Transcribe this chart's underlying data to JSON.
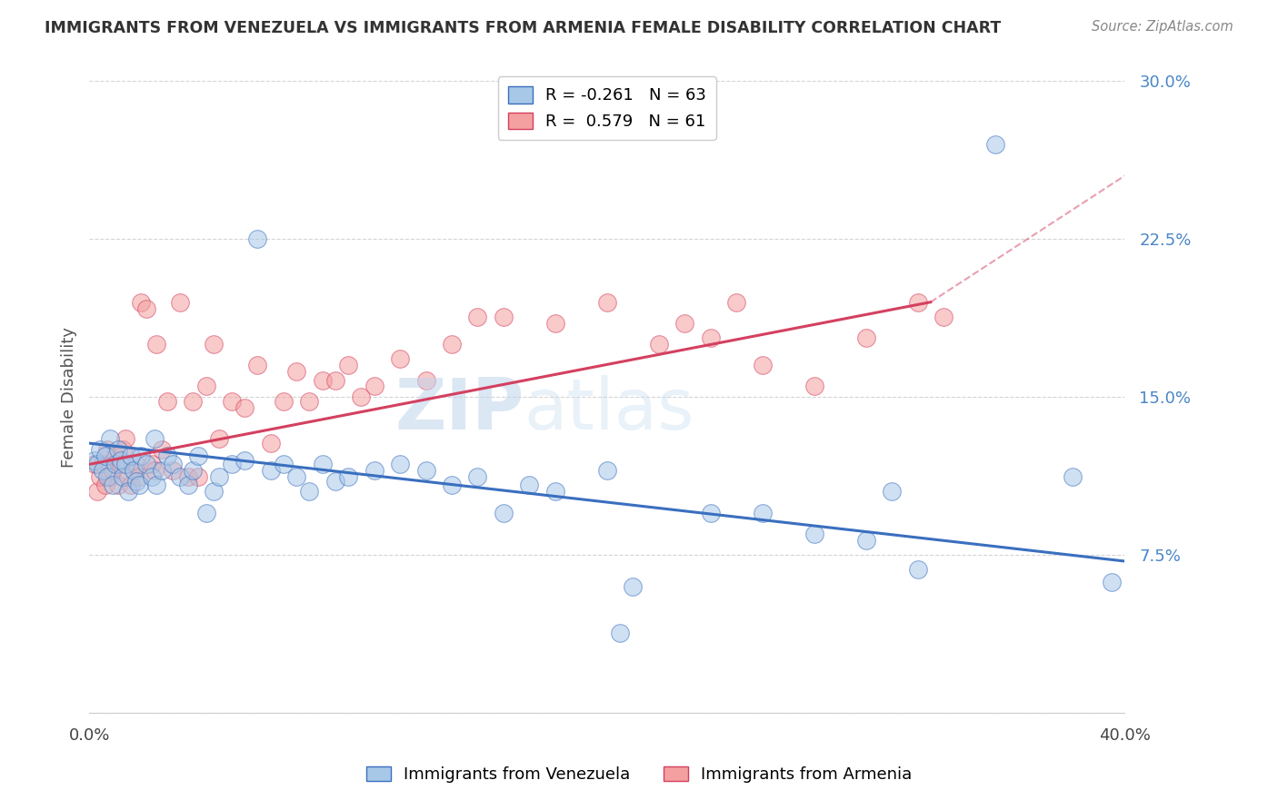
{
  "title": "IMMIGRANTS FROM VENEZUELA VS IMMIGRANTS FROM ARMENIA FEMALE DISABILITY CORRELATION CHART",
  "source": "Source: ZipAtlas.com",
  "ylabel": "Female Disability",
  "xlim": [
    0.0,
    0.4
  ],
  "ylim": [
    0.0,
    0.3
  ],
  "yticks": [
    0.0,
    0.075,
    0.15,
    0.225,
    0.3
  ],
  "ytick_labels": [
    "",
    "7.5%",
    "15.0%",
    "22.5%",
    "30.0%"
  ],
  "xticks": [
    0.0,
    0.1,
    0.2,
    0.3,
    0.4
  ],
  "xtick_labels": [
    "0.0%",
    "",
    "",
    "",
    "40.0%"
  ],
  "legend1_r": "-0.261",
  "legend1_n": "63",
  "legend2_r": "0.579",
  "legend2_n": "61",
  "color_venezuela": "#a8c8e8",
  "color_armenia": "#f4a0a0",
  "line_color_venezuela": "#3a6fbf",
  "line_color_armenia": "#d44060",
  "background_color": "#ffffff",
  "venezuela_x": [
    0.002,
    0.003,
    0.004,
    0.005,
    0.006,
    0.007,
    0.008,
    0.009,
    0.01,
    0.011,
    0.012,
    0.013,
    0.014,
    0.015,
    0.016,
    0.017,
    0.018,
    0.019,
    0.02,
    0.022,
    0.024,
    0.025,
    0.026,
    0.028,
    0.03,
    0.032,
    0.035,
    0.038,
    0.04,
    0.042,
    0.045,
    0.048,
    0.05,
    0.055,
    0.06,
    0.065,
    0.07,
    0.075,
    0.08,
    0.085,
    0.09,
    0.095,
    0.1,
    0.11,
    0.12,
    0.13,
    0.14,
    0.15,
    0.16,
    0.17,
    0.18,
    0.2,
    0.21,
    0.24,
    0.26,
    0.28,
    0.3,
    0.31,
    0.32,
    0.38,
    0.395,
    0.205,
    0.35
  ],
  "venezuela_y": [
    0.12,
    0.118,
    0.125,
    0.115,
    0.122,
    0.112,
    0.13,
    0.108,
    0.118,
    0.125,
    0.12,
    0.112,
    0.118,
    0.105,
    0.122,
    0.115,
    0.11,
    0.108,
    0.122,
    0.118,
    0.112,
    0.13,
    0.108,
    0.115,
    0.122,
    0.118,
    0.112,
    0.108,
    0.115,
    0.122,
    0.095,
    0.105,
    0.112,
    0.118,
    0.12,
    0.225,
    0.115,
    0.118,
    0.112,
    0.105,
    0.118,
    0.11,
    0.112,
    0.115,
    0.118,
    0.115,
    0.108,
    0.112,
    0.095,
    0.108,
    0.105,
    0.115,
    0.06,
    0.095,
    0.095,
    0.085,
    0.082,
    0.105,
    0.068,
    0.112,
    0.062,
    0.038,
    0.27
  ],
  "armenia_x": [
    0.002,
    0.003,
    0.004,
    0.005,
    0.006,
    0.007,
    0.008,
    0.009,
    0.01,
    0.011,
    0.012,
    0.013,
    0.014,
    0.015,
    0.016,
    0.017,
    0.018,
    0.019,
    0.02,
    0.022,
    0.024,
    0.025,
    0.026,
    0.028,
    0.03,
    0.032,
    0.035,
    0.038,
    0.04,
    0.042,
    0.045,
    0.048,
    0.05,
    0.055,
    0.06,
    0.065,
    0.07,
    0.075,
    0.08,
    0.085,
    0.09,
    0.095,
    0.1,
    0.105,
    0.11,
    0.12,
    0.13,
    0.14,
    0.15,
    0.16,
    0.18,
    0.2,
    0.22,
    0.23,
    0.24,
    0.25,
    0.26,
    0.28,
    0.3,
    0.32,
    0.33
  ],
  "armenia_y": [
    0.118,
    0.105,
    0.112,
    0.118,
    0.108,
    0.125,
    0.112,
    0.115,
    0.122,
    0.108,
    0.118,
    0.125,
    0.13,
    0.112,
    0.108,
    0.115,
    0.118,
    0.112,
    0.195,
    0.192,
    0.118,
    0.115,
    0.175,
    0.125,
    0.148,
    0.115,
    0.195,
    0.112,
    0.148,
    0.112,
    0.155,
    0.175,
    0.13,
    0.148,
    0.145,
    0.165,
    0.128,
    0.148,
    0.162,
    0.148,
    0.158,
    0.158,
    0.165,
    0.15,
    0.155,
    0.168,
    0.158,
    0.175,
    0.188,
    0.188,
    0.185,
    0.195,
    0.175,
    0.185,
    0.178,
    0.195,
    0.165,
    0.155,
    0.178,
    0.195,
    0.188
  ]
}
